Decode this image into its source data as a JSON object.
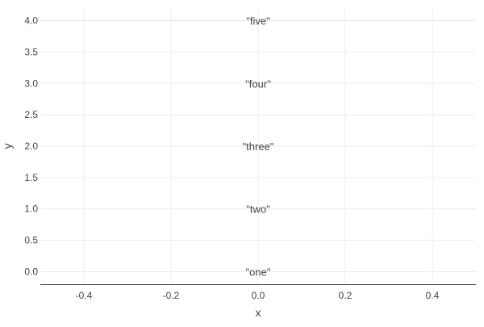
{
  "chart_data": {
    "type": "scatter",
    "mode": "text",
    "title": "",
    "xlabel": "x",
    "ylabel": "y",
    "xlim": [
      -0.5,
      0.5
    ],
    "ylim": [
      -0.2,
      4.2
    ],
    "x_ticks": [
      -0.4,
      -0.2,
      0.0,
      0.2,
      0.4
    ],
    "x_tick_labels": [
      "-0.4",
      "-0.2",
      "0.0",
      "0.2",
      "0.4"
    ],
    "y_ticks": [
      0.0,
      0.5,
      1.0,
      1.5,
      2.0,
      2.5,
      3.0,
      3.5,
      4.0
    ],
    "y_tick_labels": [
      "0.0",
      "0.5",
      "1.0",
      "1.5",
      "2.0",
      "2.5",
      "3.0",
      "3.5",
      "4.0"
    ],
    "grid": true,
    "legend": false,
    "series": [
      {
        "x": [
          0,
          0,
          0,
          0,
          0
        ],
        "y": [
          0,
          1,
          2,
          3,
          4
        ],
        "text": [
          "\"one\"",
          "\"two\"",
          "\"three\"",
          "\"four\"",
          "\"five\""
        ]
      }
    ],
    "colors": {
      "grid": "#ebebeb",
      "axis_line": "#444444",
      "tick_text": "#444444",
      "point_text": "#444444"
    }
  }
}
